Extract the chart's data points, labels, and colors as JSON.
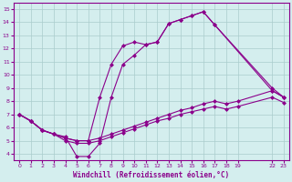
{
  "xlabel": "Windchill (Refroidissement éolien,°C)",
  "bg_color": "#d4eeee",
  "line_color": "#8b008b",
  "grid_color": "#aacccc",
  "xticks": [
    0,
    1,
    2,
    3,
    4,
    5,
    6,
    7,
    8,
    9,
    10,
    11,
    12,
    13,
    14,
    15,
    16,
    17,
    18,
    19,
    22,
    23
  ],
  "yticks": [
    4,
    5,
    6,
    7,
    8,
    9,
    10,
    11,
    12,
    13,
    14,
    15
  ],
  "xlim": [
    -0.5,
    23.5
  ],
  "ylim": [
    3.5,
    15.5
  ],
  "lines": [
    {
      "x": [
        0,
        1,
        2,
        3,
        4,
        5,
        6,
        7,
        8,
        9,
        10,
        11,
        12,
        13,
        14,
        15,
        16,
        17,
        22,
        23
      ],
      "y": [
        7.0,
        6.5,
        5.8,
        5.5,
        5.2,
        5.0,
        5.0,
        8.3,
        10.8,
        12.2,
        12.5,
        12.3,
        12.5,
        13.9,
        14.2,
        14.5,
        14.8,
        13.8,
        8.8,
        8.3
      ]
    },
    {
      "x": [
        0,
        1,
        2,
        3,
        4,
        5,
        6,
        7,
        8,
        9,
        10,
        11,
        12,
        13,
        14,
        15,
        16,
        17,
        22,
        23
      ],
      "y": [
        7.0,
        6.5,
        5.8,
        5.5,
        5.3,
        3.8,
        3.8,
        4.8,
        8.3,
        10.8,
        11.5,
        12.3,
        12.5,
        13.9,
        14.2,
        14.5,
        14.8,
        13.8,
        9.0,
        8.3
      ]
    },
    {
      "x": [
        0,
        1,
        2,
        3,
        4,
        5,
        6,
        7,
        8,
        9,
        10,
        11,
        12,
        13,
        14,
        15,
        16,
        17,
        18,
        19,
        22,
        23
      ],
      "y": [
        7.0,
        6.5,
        5.8,
        5.5,
        5.2,
        5.0,
        5.0,
        5.2,
        5.5,
        5.8,
        6.1,
        6.4,
        6.7,
        7.0,
        7.3,
        7.5,
        7.8,
        8.0,
        7.8,
        8.0,
        8.8,
        8.3
      ]
    },
    {
      "x": [
        0,
        1,
        2,
        3,
        4,
        5,
        6,
        7,
        8,
        9,
        10,
        11,
        12,
        13,
        14,
        15,
        16,
        17,
        18,
        19,
        22,
        23
      ],
      "y": [
        7.0,
        6.5,
        5.8,
        5.5,
        5.0,
        4.8,
        4.8,
        5.0,
        5.3,
        5.6,
        5.9,
        6.2,
        6.5,
        6.7,
        7.0,
        7.2,
        7.4,
        7.6,
        7.4,
        7.6,
        8.3,
        7.9
      ]
    }
  ]
}
